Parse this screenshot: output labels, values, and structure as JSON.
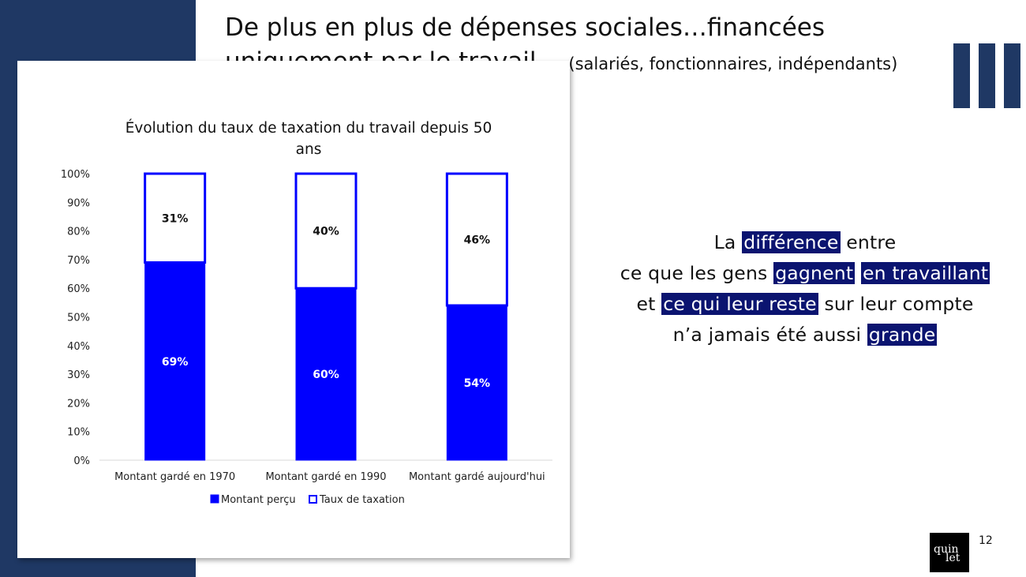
{
  "slide": {
    "title_line1": "De plus en plus de dépenses sociales…financées",
    "title_line2": "uniquement par le travail…",
    "title_sub": "(salariés, fonctionnaires, indépendants)",
    "page_number": "12",
    "logo_text_top": "quin",
    "logo_text_bottom": "let"
  },
  "callout": {
    "line1_a": "La",
    "line1_hl": "différence",
    "line1_b": "entre",
    "line2_a": "ce que les gens",
    "line2_hl1": "gagnent",
    "line2_hl2": "en travaillant",
    "line3_a": "et",
    "line3_hl": "ce qui leur reste",
    "line3_b": "sur leur compte",
    "line4_a": "n’a jamais été aussi",
    "line4_hl": "grande"
  },
  "colors": {
    "band": "#1f3864",
    "bar_fill": "#0000ff",
    "highlight": "#0b1470"
  },
  "chart_data": {
    "type": "bar",
    "stacked": true,
    "title_line1": "Évolution du taux de taxation du travail depuis 50",
    "title_line2": "ans",
    "categories": [
      "Montant gardé en 1970",
      "Montant gardé en 1990",
      "Montant gardé aujourd'hui"
    ],
    "series": [
      {
        "name": "Montant perçu",
        "values": [
          69,
          60,
          54
        ],
        "labels": [
          "69%",
          "60%",
          "54%"
        ],
        "fill": "#0000ff"
      },
      {
        "name": "Taux de taxation",
        "values": [
          31,
          40,
          46
        ],
        "labels": [
          "31%",
          "40%",
          "46%"
        ],
        "fill": "#ffffff"
      }
    ],
    "ylim": [
      0,
      100
    ],
    "yticks": [
      "0%",
      "10%",
      "20%",
      "30%",
      "40%",
      "50%",
      "60%",
      "70%",
      "80%",
      "90%",
      "100%"
    ],
    "legend_position": "bottom",
    "grid": false
  }
}
